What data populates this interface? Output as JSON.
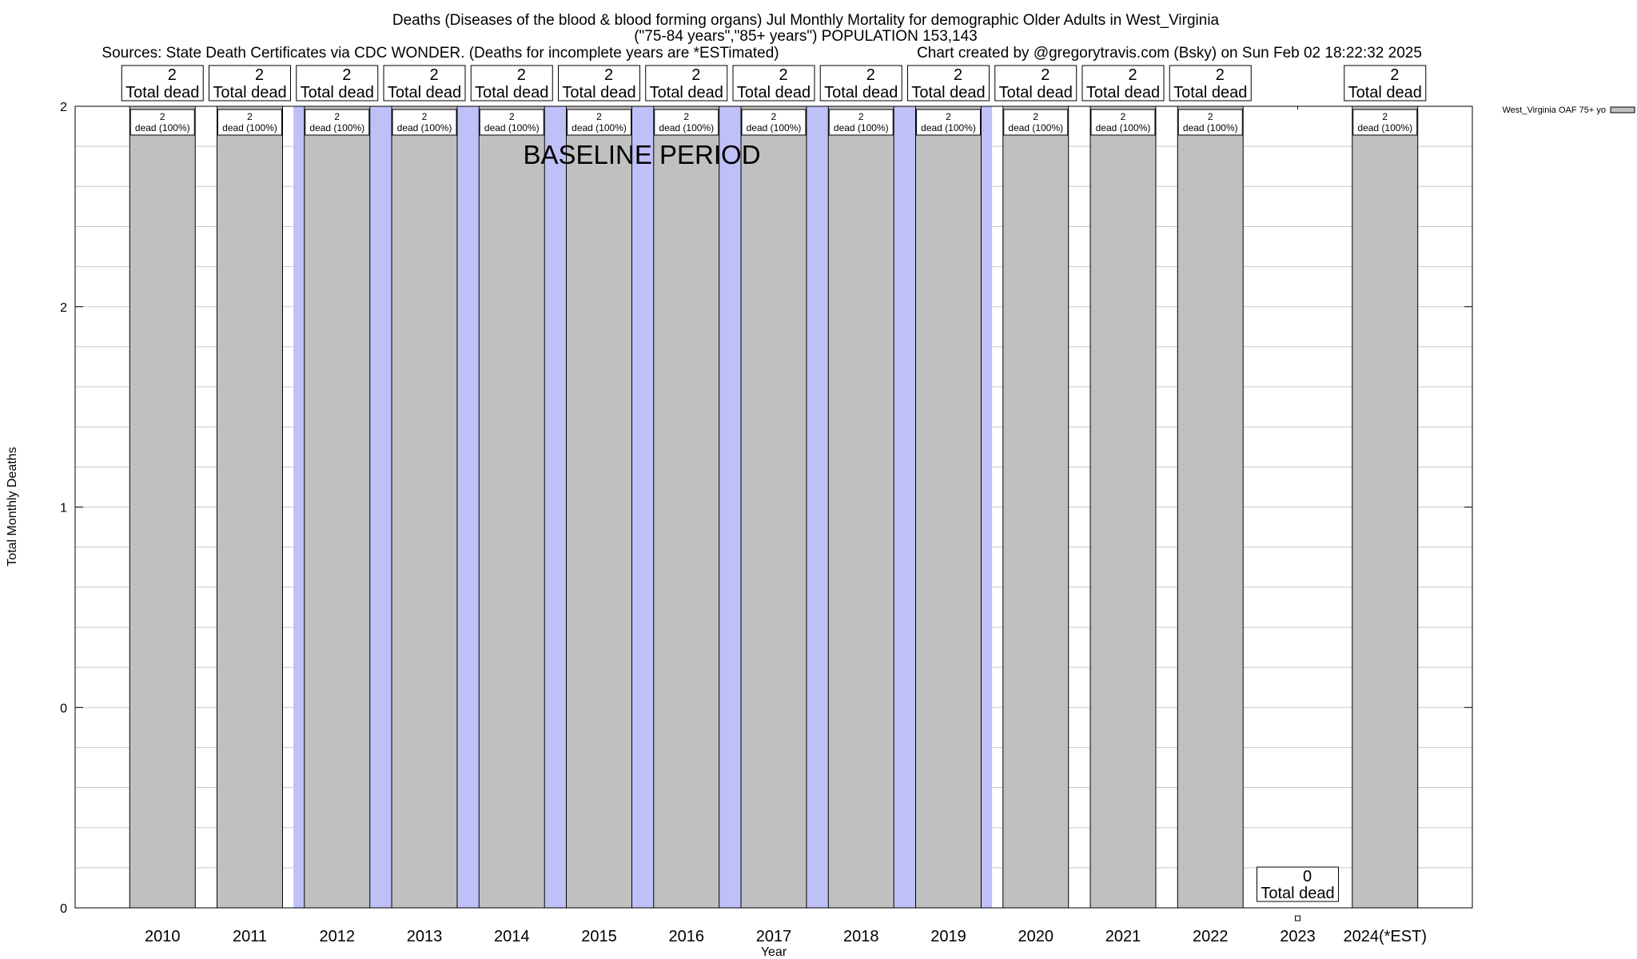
{
  "chart_data": {
    "type": "bar",
    "title": "Deaths (Diseases of the blood & blood forming organs) Jul Monthly Mortality for demographic Older Adults in West_Virginia",
    "subtitle": "(\"75-84 years\",\"85+ years\") POPULATION 153,143",
    "sources": "Sources: State Death Certificates via CDC WONDER. (Deaths for incomplete years are *ESTimated)",
    "credit": "Chart created by @gregorytravis.com (Bsky) on Sun Feb 02 18:22:32 2025",
    "xlabel": "Year",
    "ylabel": "Total Monthly Deaths",
    "annotation": "BASELINE PERIOD",
    "legend": {
      "label": "West_Virginia OAF 75+ yo",
      "placement": "top-right",
      "color": "#c0c0c0"
    },
    "categories": [
      "2010",
      "2011",
      "2012",
      "2013",
      "2014",
      "2015",
      "2016",
      "2017",
      "2018",
      "2019",
      "2020",
      "2021",
      "2022",
      "2023",
      "2024(*EST)"
    ],
    "values": [
      2,
      2,
      2,
      2,
      2,
      2,
      2,
      2,
      2,
      2,
      2,
      2,
      2,
      0,
      2
    ],
    "top_labels": [
      [
        "2",
        "Total dead"
      ],
      [
        "2",
        "Total dead"
      ],
      [
        "2",
        "Total dead"
      ],
      [
        "2",
        "Total dead"
      ],
      [
        "2",
        "Total dead"
      ],
      [
        "2",
        "Total dead"
      ],
      [
        "2",
        "Total dead"
      ],
      [
        "2",
        "Total dead"
      ],
      [
        "2",
        "Total dead"
      ],
      [
        "2",
        "Total dead"
      ],
      [
        "2",
        "Total dead"
      ],
      [
        "2",
        "Total dead"
      ],
      [
        "2",
        "Total dead"
      ],
      [
        "0",
        "Total dead"
      ],
      [
        "2",
        "Total dead"
      ]
    ],
    "bar_labels": [
      [
        "2",
        "dead (100%)"
      ],
      [
        "2",
        "dead (100%)"
      ],
      [
        "2",
        "dead (100%)"
      ],
      [
        "2",
        "dead (100%)"
      ],
      [
        "2",
        "dead (100%)"
      ],
      [
        "2",
        "dead (100%)"
      ],
      [
        "2",
        "dead (100%)"
      ],
      [
        "2",
        "dead (100%)"
      ],
      [
        "2",
        "dead (100%)"
      ],
      [
        "2",
        "dead (100%)"
      ],
      [
        "2",
        "dead (100%)"
      ],
      [
        "2",
        "dead (100%)"
      ],
      [
        "2",
        "dead (100%)"
      ],
      null,
      [
        "2",
        "dead (100%)"
      ]
    ],
    "y_ticks": [
      "0",
      "0",
      "1",
      "2",
      "2"
    ],
    "ylim": [
      0,
      2
    ],
    "grid": true,
    "baseline_categories": [
      "2012",
      "2013",
      "2014",
      "2015",
      "2016",
      "2017",
      "2018",
      "2019"
    ],
    "colors": {
      "bar": "#c0c0c0",
      "baseline_shade": "#c0c0f8",
      "grid": "#c8c8c8",
      "axis": "#000000"
    }
  }
}
